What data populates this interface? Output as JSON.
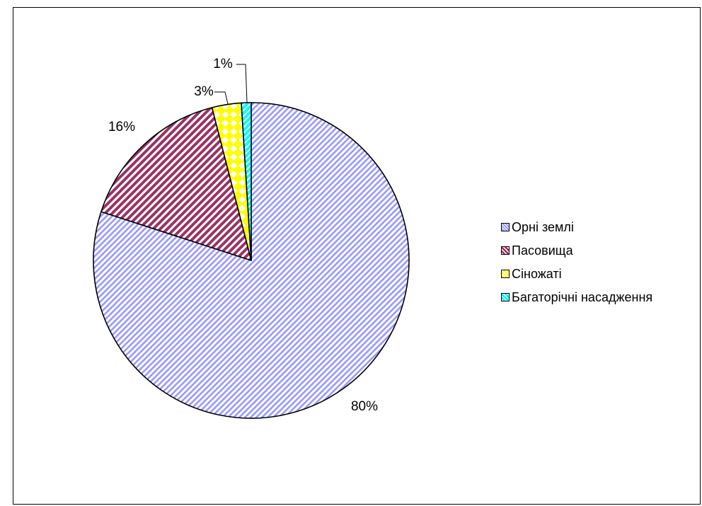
{
  "chart_data": {
    "type": "pie",
    "start_angle_deg": 0,
    "direction": "clockwise",
    "slices": [
      {
        "label": "Орні землі",
        "value": 80,
        "value_label": "80%",
        "color": "#9999ff",
        "pattern": "diagonal-stripes"
      },
      {
        "label": "Пасовища",
        "value": 16,
        "value_label": "16%",
        "color": "#993366",
        "pattern": "diagonal-stripes"
      },
      {
        "label": "Сіножаті",
        "value": 3,
        "value_label": "3%",
        "color": "#ffff00",
        "pattern": "checker-diamond"
      },
      {
        "label": "Багаторічні насадження",
        "value": 1,
        "value_label": "1%",
        "color": "#00ffff",
        "pattern": "diagonal-stripes"
      }
    ],
    "legend": {
      "position": "right"
    }
  }
}
